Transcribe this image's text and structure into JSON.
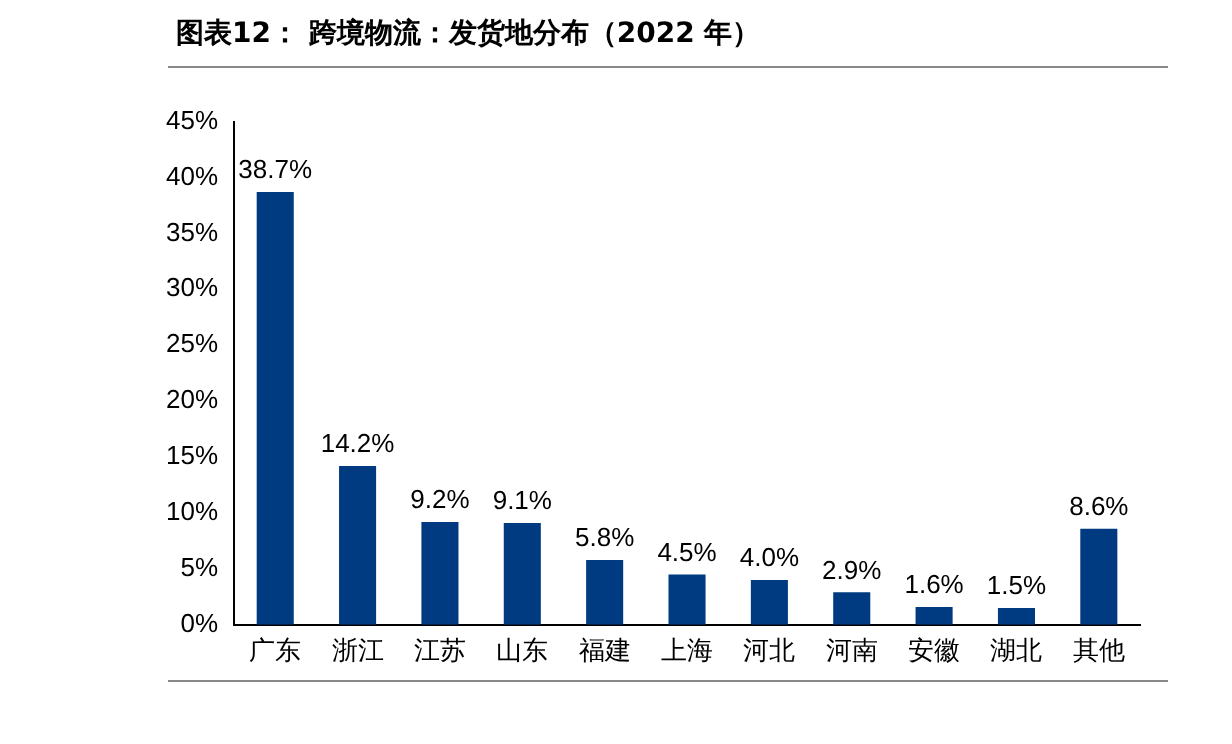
{
  "chart_data": {
    "type": "bar",
    "title": "图表12：  跨境物流：发货地分布（2022 年）",
    "categories": [
      "广东",
      "浙江",
      "江苏",
      "山东",
      "福建",
      "上海",
      "河北",
      "河南",
      "安徽",
      "湖北",
      "其他"
    ],
    "values": [
      38.7,
      14.2,
      9.2,
      9.1,
      5.8,
      4.5,
      4.0,
      2.9,
      1.6,
      1.5,
      8.6
    ],
    "value_labels": [
      "38.7%",
      "14.2%",
      "9.2%",
      "9.1%",
      "5.8%",
      "4.5%",
      "4.0%",
      "2.9%",
      "1.6%",
      "1.5%",
      "8.6%"
    ],
    "color": "#003a80",
    "ylim": [
      0,
      45
    ],
    "yticks": [
      {
        "value": 0,
        "label": "0%"
      },
      {
        "value": 5,
        "label": "5%"
      },
      {
        "value": 10,
        "label": "10%"
      },
      {
        "value": 15,
        "label": "15%"
      },
      {
        "value": 20,
        "label": "20%"
      },
      {
        "value": 25,
        "label": "25%"
      },
      {
        "value": 30,
        "label": "30%"
      },
      {
        "value": 35,
        "label": "35%"
      },
      {
        "value": 40,
        "label": "40%"
      },
      {
        "value": 45,
        "label": "45%"
      }
    ],
    "grid": false,
    "legend": false
  }
}
